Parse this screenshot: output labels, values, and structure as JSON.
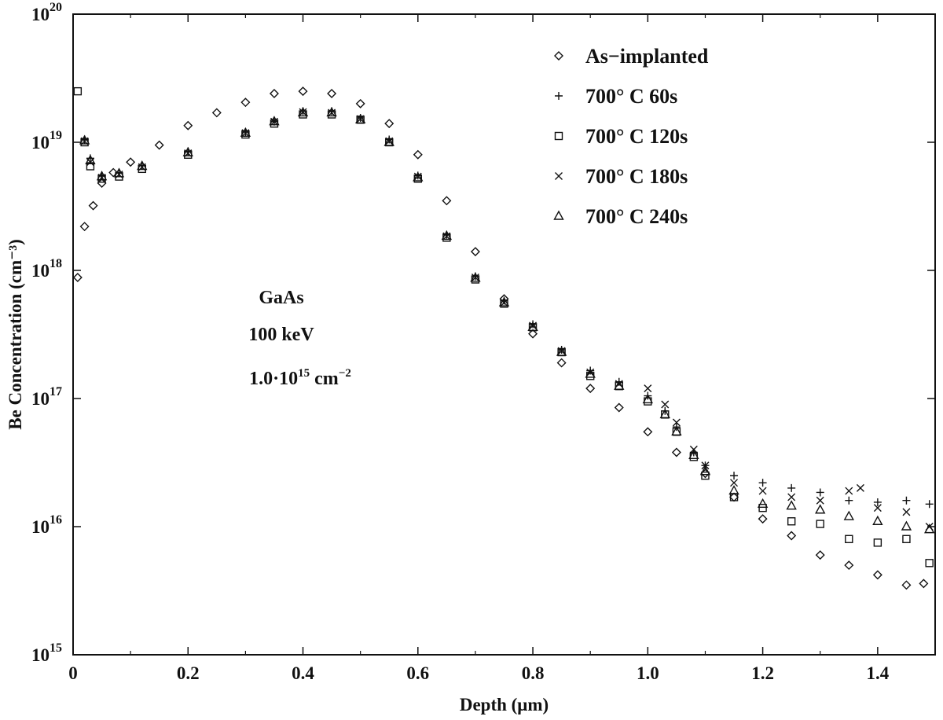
{
  "chart_data": {
    "type": "scatter",
    "xlabel": "Depth (μm)",
    "ylabel": "Be Concentration (cm⁻³)",
    "xlim": [
      0,
      1.5
    ],
    "ylim": [
      1000000000000000.0,
      1e+20
    ],
    "yscale": "log",
    "grid": false,
    "legend_position": "top-right",
    "x_ticks": [
      "0",
      "0.2",
      "0.4",
      "0.6",
      "0.8",
      "1.0",
      "1.2",
      "1.4"
    ],
    "y_ticks": [
      {
        "base": "10",
        "exp": "15"
      },
      {
        "base": "10",
        "exp": "16"
      },
      {
        "base": "10",
        "exp": "17"
      },
      {
        "base": "10",
        "exp": "18"
      },
      {
        "base": "10",
        "exp": "19"
      },
      {
        "base": "10",
        "exp": "20"
      }
    ],
    "annotation": {
      "line1": "GaAs",
      "line2": "100 keV",
      "line3_base": "1.0·10",
      "line3_exp": "15",
      "line3_unit": " cm",
      "line3_unit_exp": "−2"
    },
    "series": [
      {
        "name": "As−implanted",
        "marker": "diamond",
        "points": [
          [
            0.008,
            8.8e+17
          ],
          [
            0.02,
            2.2e+18
          ],
          [
            0.035,
            3.2e+18
          ],
          [
            0.05,
            4.8e+18
          ],
          [
            0.07,
            5.8e+18
          ],
          [
            0.1,
            7e+18
          ],
          [
            0.15,
            9.5e+18
          ],
          [
            0.2,
            1.35e+19
          ],
          [
            0.25,
            1.7e+19
          ],
          [
            0.3,
            2.05e+19
          ],
          [
            0.35,
            2.4e+19
          ],
          [
            0.4,
            2.5e+19
          ],
          [
            0.45,
            2.4e+19
          ],
          [
            0.5,
            2e+19
          ],
          [
            0.55,
            1.4e+19
          ],
          [
            0.6,
            8e+18
          ],
          [
            0.65,
            3.5e+18
          ],
          [
            0.7,
            1.4e+18
          ],
          [
            0.75,
            6e+17
          ],
          [
            0.8,
            3.2e+17
          ],
          [
            0.85,
            1.9e+17
          ],
          [
            0.9,
            1.2e+17
          ],
          [
            0.95,
            8.5e+16
          ],
          [
            1.0,
            5.5e+16
          ],
          [
            1.05,
            3.8e+16
          ],
          [
            1.1,
            2.6e+16
          ],
          [
            1.15,
            1.7e+16
          ],
          [
            1.2,
            1.15e+16
          ],
          [
            1.25,
            8500000000000000.0
          ],
          [
            1.3,
            6000000000000000.0
          ],
          [
            1.35,
            5000000000000000.0
          ],
          [
            1.4,
            4200000000000000.0
          ],
          [
            1.45,
            3500000000000000.0
          ],
          [
            1.48,
            3600000000000000.0
          ]
        ]
      },
      {
        "name": "700° C 60s",
        "marker": "plus",
        "points": [
          [
            0.02,
            1.05e+19
          ],
          [
            0.03,
            7.5e+18
          ],
          [
            0.05,
            5.5e+18
          ],
          [
            0.08,
            5.8e+18
          ],
          [
            0.12,
            6.6e+18
          ],
          [
            0.2,
            8.5e+18
          ],
          [
            0.3,
            1.2e+19
          ],
          [
            0.35,
            1.45e+19
          ],
          [
            0.4,
            1.75e+19
          ],
          [
            0.45,
            1.75e+19
          ],
          [
            0.5,
            1.55e+19
          ],
          [
            0.55,
            1.05e+19
          ],
          [
            0.6,
            5.5e+18
          ],
          [
            0.65,
            1.9e+18
          ],
          [
            0.7,
            9e+17
          ],
          [
            0.75,
            5.8e+17
          ],
          [
            0.8,
            3.8e+17
          ],
          [
            0.85,
            2.4e+17
          ],
          [
            0.9,
            1.65e+17
          ],
          [
            0.95,
            1.35e+17
          ],
          [
            1.0,
            1.05e+17
          ],
          [
            1.03,
            8e+16
          ],
          [
            1.05,
            6e+16
          ],
          [
            1.08,
            3.8e+16
          ],
          [
            1.1,
            3e+16
          ],
          [
            1.15,
            2.5e+16
          ],
          [
            1.2,
            2.2e+16
          ],
          [
            1.25,
            2e+16
          ],
          [
            1.3,
            1.85e+16
          ],
          [
            1.35,
            1.6e+16
          ],
          [
            1.4,
            1.55e+16
          ],
          [
            1.45,
            1.6e+16
          ],
          [
            1.49,
            1.5e+16
          ]
        ]
      },
      {
        "name": "700° C 120s",
        "marker": "square",
        "points": [
          [
            0.008,
            2.5e+19
          ],
          [
            0.02,
            1e+19
          ],
          [
            0.03,
            6.5e+18
          ],
          [
            0.05,
            5.2e+18
          ],
          [
            0.08,
            5.4e+18
          ],
          [
            0.12,
            6.2e+18
          ],
          [
            0.2,
            8e+18
          ],
          [
            0.3,
            1.15e+19
          ],
          [
            0.35,
            1.4e+19
          ],
          [
            0.4,
            1.65e+19
          ],
          [
            0.45,
            1.65e+19
          ],
          [
            0.5,
            1.5e+19
          ],
          [
            0.55,
            1e+19
          ],
          [
            0.6,
            5.2e+18
          ],
          [
            0.65,
            1.8e+18
          ],
          [
            0.7,
            8.5e+17
          ],
          [
            0.75,
            5.5e+17
          ],
          [
            0.8,
            3.6e+17
          ],
          [
            0.85,
            2.3e+17
          ],
          [
            0.9,
            1.5e+17
          ],
          [
            0.95,
            1.25e+17
          ],
          [
            1.0,
            9.5e+16
          ],
          [
            1.03,
            7.5e+16
          ],
          [
            1.05,
            5.5e+16
          ],
          [
            1.08,
            3.5e+16
          ],
          [
            1.1,
            2.5e+16
          ],
          [
            1.15,
            1.7e+16
          ],
          [
            1.2,
            1.4e+16
          ],
          [
            1.25,
            1.1e+16
          ],
          [
            1.3,
            1.05e+16
          ],
          [
            1.35,
            8000000000000000.0
          ],
          [
            1.4,
            7500000000000000.0
          ],
          [
            1.45,
            8000000000000000.0
          ],
          [
            1.49,
            5200000000000000.0
          ]
        ]
      },
      {
        "name": "700° C 180s",
        "marker": "cross",
        "points": [
          [
            0.02,
            1.02e+19
          ],
          [
            0.03,
            7e+18
          ],
          [
            0.05,
            5.3e+18
          ],
          [
            0.08,
            5.6e+18
          ],
          [
            0.12,
            6.4e+18
          ],
          [
            0.2,
            8.2e+18
          ],
          [
            0.3,
            1.18e+19
          ],
          [
            0.35,
            1.45e+19
          ],
          [
            0.4,
            1.72e+19
          ],
          [
            0.45,
            1.7e+19
          ],
          [
            0.5,
            1.52e+19
          ],
          [
            0.55,
            1.02e+19
          ],
          [
            0.6,
            5.4e+18
          ],
          [
            0.65,
            1.85e+18
          ],
          [
            0.7,
            8.8e+17
          ],
          [
            0.75,
            5.6e+17
          ],
          [
            0.8,
            3.7e+17
          ],
          [
            0.85,
            2.35e+17
          ],
          [
            0.9,
            1.6e+17
          ],
          [
            0.95,
            1.3e+17
          ],
          [
            1.0,
            1.2e+17
          ],
          [
            1.03,
            9e+16
          ],
          [
            1.05,
            6.5e+16
          ],
          [
            1.08,
            4e+16
          ],
          [
            1.1,
            3e+16
          ],
          [
            1.15,
            2.2e+16
          ],
          [
            1.2,
            1.9e+16
          ],
          [
            1.25,
            1.7e+16
          ],
          [
            1.3,
            1.6e+16
          ],
          [
            1.35,
            1.9e+16
          ],
          [
            1.37,
            2e+16
          ],
          [
            1.4,
            1.4e+16
          ],
          [
            1.45,
            1.3e+16
          ],
          [
            1.49,
            1e+16
          ]
        ]
      },
      {
        "name": "700° C 240s",
        "marker": "triangle",
        "points": [
          [
            0.02,
            1.03e+19
          ],
          [
            0.03,
            7.2e+18
          ],
          [
            0.05,
            5.4e+18
          ],
          [
            0.08,
            5.7e+18
          ],
          [
            0.12,
            6.5e+18
          ],
          [
            0.2,
            8.3e+18
          ],
          [
            0.3,
            1.18e+19
          ],
          [
            0.35,
            1.45e+19
          ],
          [
            0.4,
            1.7e+19
          ],
          [
            0.45,
            1.7e+19
          ],
          [
            0.5,
            1.5e+19
          ],
          [
            0.55,
            1e+19
          ],
          [
            0.6,
            5.3e+18
          ],
          [
            0.65,
            1.85e+18
          ],
          [
            0.7,
            8.7e+17
          ],
          [
            0.75,
            5.6e+17
          ],
          [
            0.8,
            3.6e+17
          ],
          [
            0.85,
            2.3e+17
          ],
          [
            0.9,
            1.55e+17
          ],
          [
            0.95,
            1.25e+17
          ],
          [
            1.0,
            9.8e+16
          ],
          [
            1.03,
            7.5e+16
          ],
          [
            1.05,
            5.5e+16
          ],
          [
            1.08,
            3.6e+16
          ],
          [
            1.1,
            2.7e+16
          ],
          [
            1.15,
            1.9e+16
          ],
          [
            1.2,
            1.5e+16
          ],
          [
            1.25,
            1.45e+16
          ],
          [
            1.3,
            1.35e+16
          ],
          [
            1.35,
            1.2e+16
          ],
          [
            1.4,
            1.1e+16
          ],
          [
            1.45,
            1e+16
          ],
          [
            1.49,
            9500000000000000.0
          ]
        ]
      }
    ]
  }
}
